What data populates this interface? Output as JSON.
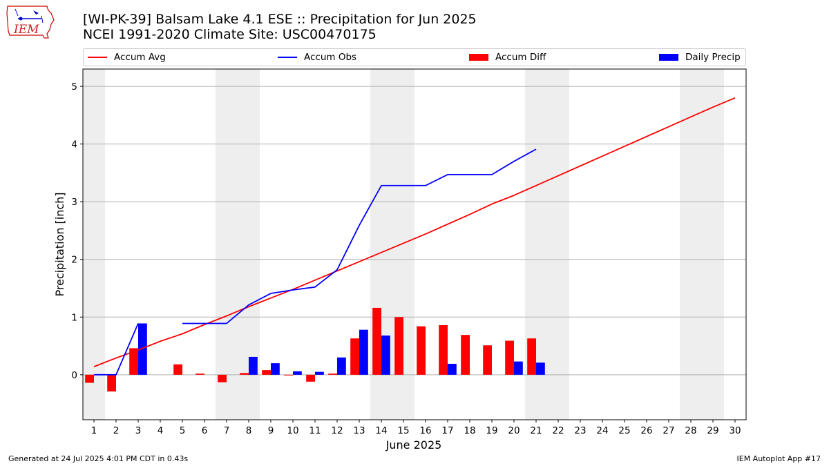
{
  "header": {
    "title_line1": "[WI-PK-39] Balsam Lake 4.1 ESE :: Precipitation for Jun 2025",
    "title_line2": "NCEI 1991-2020 Climate Site: USC00470175",
    "logo_text": "IEM"
  },
  "legend": {
    "items": [
      {
        "label": "Accum Avg",
        "color": "#ff0000",
        "kind": "line"
      },
      {
        "label": "Accum Obs",
        "color": "#0000ff",
        "kind": "line"
      },
      {
        "label": "Accum Diff",
        "color": "#ff0000",
        "kind": "bar"
      },
      {
        "label": "Daily Precip",
        "color": "#0000ff",
        "kind": "bar"
      }
    ]
  },
  "footer": {
    "left": "Generated at 24 Jul 2025 4:01 PM CDT in 0.43s",
    "right": "IEM Autoplot App #17"
  },
  "chart_data": {
    "type": "bar",
    "xlabel": "June 2025",
    "ylabel": "Precipitation [inch]",
    "ylim": [
      -0.78,
      5.3
    ],
    "xlim": [
      0.5,
      30.5
    ],
    "yticks": [
      0,
      1,
      2,
      3,
      4,
      5
    ],
    "xticks": [
      1,
      2,
      3,
      4,
      5,
      6,
      7,
      8,
      9,
      10,
      11,
      12,
      13,
      14,
      15,
      16,
      17,
      18,
      19,
      20,
      21,
      22,
      23,
      24,
      25,
      26,
      27,
      28,
      29,
      30
    ],
    "weekend_shading": [
      [
        0.5,
        1.5
      ],
      [
        6.5,
        8.5
      ],
      [
        13.5,
        15.5
      ],
      [
        20.5,
        22.5
      ],
      [
        27.5,
        29.5
      ]
    ],
    "grid": "horizontal",
    "colors": {
      "avg": "#ff0000",
      "obs": "#0000ff",
      "diff": "#ff0000",
      "daily": "#0000ff",
      "shade": "#eeeeee",
      "grid": "#b0b0b0"
    },
    "series": [
      {
        "name": "Accum Avg",
        "type": "line",
        "x": [
          1,
          2,
          3,
          4,
          5,
          6,
          7,
          8,
          9,
          10,
          11,
          12,
          13,
          14,
          15,
          16,
          17,
          18,
          19,
          20,
          21,
          22,
          23,
          24,
          25,
          26,
          27,
          28,
          29,
          30
        ],
        "values": [
          0.14,
          0.29,
          0.43,
          0.58,
          0.71,
          0.87,
          1.02,
          1.18,
          1.33,
          1.48,
          1.64,
          1.8,
          1.96,
          2.12,
          2.28,
          2.44,
          2.61,
          2.78,
          2.96,
          3.11,
          3.28,
          3.45,
          3.62,
          3.79,
          3.96,
          4.13,
          4.3,
          4.47,
          4.64,
          4.8
        ]
      },
      {
        "name": "Accum Obs",
        "type": "line",
        "x": [
          1,
          2,
          3,
          4,
          5,
          6,
          7,
          8,
          9,
          10,
          11,
          12,
          13,
          14,
          15,
          16,
          17,
          18,
          19,
          20,
          21
        ],
        "values": [
          0.0,
          0.0,
          0.89,
          null,
          0.89,
          0.89,
          0.89,
          1.21,
          1.41,
          1.47,
          1.52,
          1.82,
          2.59,
          3.28,
          3.28,
          3.28,
          3.47,
          3.47,
          3.47,
          3.7,
          3.91
        ]
      },
      {
        "name": "Accum Diff",
        "type": "bar",
        "x": [
          1,
          2,
          3,
          4,
          5,
          6,
          7,
          8,
          9,
          10,
          11,
          12,
          13,
          14,
          15,
          16,
          17,
          18,
          19,
          20,
          21
        ],
        "values": [
          -0.14,
          -0.29,
          0.46,
          null,
          0.18,
          0.02,
          -0.13,
          0.03,
          0.08,
          -0.01,
          -0.12,
          0.02,
          0.63,
          1.16,
          1.0,
          0.84,
          0.86,
          0.69,
          0.51,
          0.59,
          0.63
        ]
      },
      {
        "name": "Daily Precip",
        "type": "bar",
        "x": [
          1,
          2,
          3,
          4,
          5,
          6,
          7,
          8,
          9,
          10,
          11,
          12,
          13,
          14,
          15,
          16,
          17,
          18,
          19,
          20,
          21
        ],
        "values": [
          0,
          0,
          0.89,
          0,
          0,
          0,
          0,
          0.31,
          0.2,
          0.06,
          0.05,
          0.3,
          0.78,
          0.68,
          0,
          0,
          0.19,
          0,
          0,
          0.23,
          0.21
        ]
      }
    ]
  }
}
